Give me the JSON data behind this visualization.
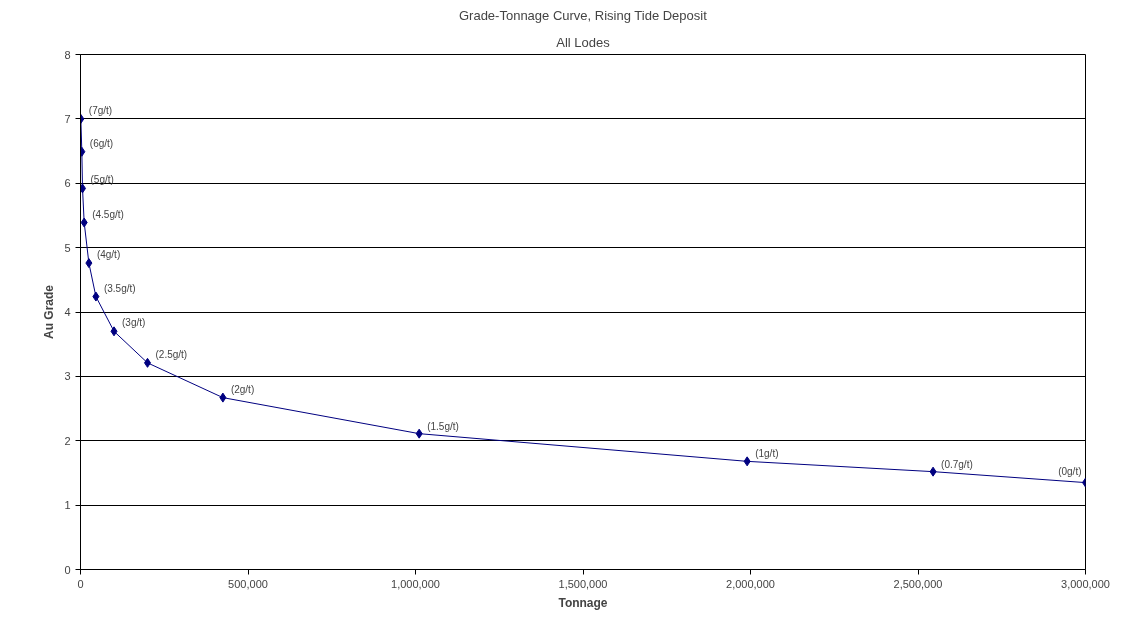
{
  "chart_data": {
    "type": "line",
    "title": "Grade-Tonnage Curve, Rising Tide Deposit",
    "subtitle": "All Lodes",
    "xlabel": "Tonnage",
    "ylabel": "Au Grade",
    "x": [
      1000,
      4000,
      6000,
      11000,
      25000,
      46000,
      100000,
      200000,
      425000,
      1011000,
      1990000,
      2545000,
      3000000
    ],
    "series": [
      {
        "color": "#000080",
        "values": [
          7.0,
          6.49,
          5.92,
          5.39,
          4.76,
          4.24,
          3.7,
          3.21,
          2.67,
          2.11,
          1.68,
          1.52,
          1.35
        ]
      }
    ],
    "annotations": [
      {
        "text": "(7g/t)",
        "x": 1000,
        "y": 7.0
      },
      {
        "text": "(6g/t)",
        "x": 4000,
        "y": 6.49
      },
      {
        "text": "(5g/t)",
        "x": 6000,
        "y": 5.92
      },
      {
        "text": "(4.5g/t)",
        "x": 11000,
        "y": 5.39
      },
      {
        "text": "(4g/t)",
        "x": 25000,
        "y": 4.76
      },
      {
        "text": "(3.5g/t)",
        "x": 46000,
        "y": 4.24
      },
      {
        "text": "(3g/t)",
        "x": 100000,
        "y": 3.7
      },
      {
        "text": "(2.5g/t)",
        "x": 200000,
        "y": 3.21
      },
      {
        "text": "(2g/t)",
        "x": 425000,
        "y": 2.67
      },
      {
        "text": "(1.5g/t)",
        "x": 1011000,
        "y": 2.11
      },
      {
        "text": "(1g/t)",
        "x": 1990000,
        "y": 1.68
      },
      {
        "text": "(0.7g/t)",
        "x": 2545000,
        "y": 1.52
      },
      {
        "text": "(0g/t)",
        "x": 3000000,
        "y": 1.35
      }
    ],
    "xlim": [
      0,
      3000000
    ],
    "ylim": [
      0,
      8
    ],
    "xticks": [
      {
        "value": 0,
        "label": "0"
      },
      {
        "value": 500000,
        "label": "500,000"
      },
      {
        "value": 1000000,
        "label": "1,000,000"
      },
      {
        "value": 1500000,
        "label": "1,500,000"
      },
      {
        "value": 2000000,
        "label": "2,000,000"
      },
      {
        "value": 2500000,
        "label": "2,500,000"
      },
      {
        "value": 3000000,
        "label": "3,000,000"
      }
    ],
    "yticks": [
      0,
      1,
      2,
      3,
      4,
      5,
      6,
      7,
      8
    ],
    "grid": "y",
    "marker": "diamond",
    "line_style": "solid"
  }
}
